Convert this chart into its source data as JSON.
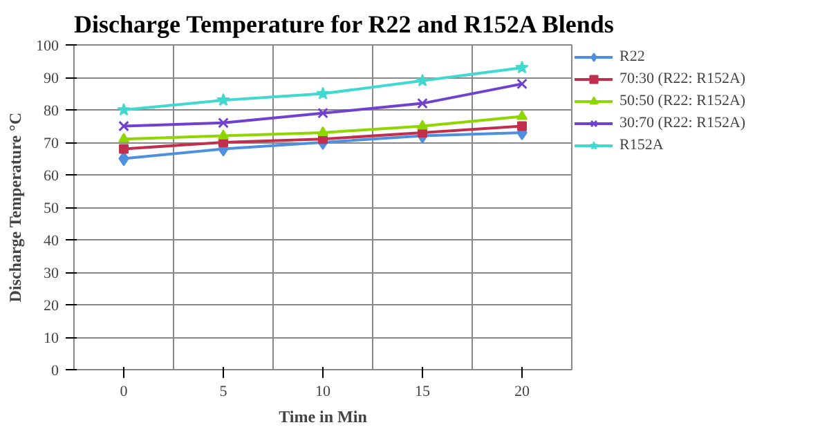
{
  "chart_data": {
    "type": "line",
    "title": "Discharge Temperature for R22 and R152A Blends",
    "xlabel": "Time in Min",
    "ylabel": "Discharge Temperature °C",
    "categories": [
      "0",
      "5",
      "10",
      "15",
      "20"
    ],
    "ylim": [
      0,
      100
    ],
    "yticks": [
      0,
      10,
      20,
      30,
      40,
      50,
      60,
      70,
      80,
      90,
      100
    ],
    "grid": true,
    "legend": "right",
    "line_style": "solid",
    "series": [
      {
        "name": "R22",
        "color": "#4f8fe0",
        "marker": "diamond",
        "values": [
          65,
          68,
          70,
          72,
          73
        ]
      },
      {
        "name": "70:30 (R22: R152A)",
        "color": "#c0304d",
        "marker": "square",
        "values": [
          68,
          70,
          71,
          73,
          75
        ]
      },
      {
        "name": "50:50 (R22: R152A)",
        "color": "#8fd600",
        "marker": "triangle",
        "values": [
          71,
          72,
          73,
          75,
          78
        ]
      },
      {
        "name": "30:70 (R22: R152A)",
        "color": "#7040d0",
        "marker": "cross",
        "values": [
          75,
          76,
          79,
          82,
          88
        ]
      },
      {
        "name": "R152A",
        "color": "#40d8d0",
        "marker": "star",
        "values": [
          80,
          83,
          85,
          89,
          93
        ]
      }
    ]
  }
}
